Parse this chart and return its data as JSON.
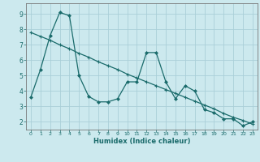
{
  "xlabel": "Humidex (Indice chaleur)",
  "background_color": "#cce9ee",
  "grid_color": "#aacfd8",
  "line_color": "#1a6b6b",
  "xlim": [
    -0.5,
    23.5
  ],
  "ylim": [
    1.5,
    9.7
  ],
  "xticks": [
    0,
    1,
    2,
    3,
    4,
    5,
    6,
    7,
    8,
    9,
    10,
    11,
    12,
    13,
    14,
    15,
    16,
    17,
    18,
    19,
    20,
    21,
    22,
    23
  ],
  "yticks": [
    2,
    3,
    4,
    5,
    6,
    7,
    8,
    9
  ],
  "jagged_x": [
    0,
    1,
    2,
    3,
    4,
    5,
    6,
    7,
    8,
    9,
    10,
    11,
    12,
    13,
    14,
    15,
    16,
    17,
    18,
    19,
    20,
    21,
    22,
    23
  ],
  "jagged_y": [
    3.6,
    5.4,
    7.6,
    9.1,
    8.9,
    5.0,
    3.65,
    3.3,
    3.3,
    3.5,
    4.6,
    4.6,
    6.5,
    6.5,
    4.6,
    3.5,
    4.35,
    4.0,
    2.8,
    2.6,
    2.2,
    2.2,
    1.75,
    2.0
  ],
  "trend_x": [
    0,
    1,
    2,
    3,
    4,
    5,
    6,
    7,
    8,
    9,
    10,
    11,
    12,
    13,
    14,
    15,
    16,
    17,
    18,
    19,
    20,
    21,
    22,
    23
  ],
  "trend_y": [
    7.8,
    7.55,
    7.3,
    7.0,
    6.75,
    6.45,
    6.2,
    5.9,
    5.65,
    5.4,
    5.1,
    4.85,
    4.6,
    4.35,
    4.1,
    3.85,
    3.6,
    3.35,
    3.1,
    2.85,
    2.55,
    2.3,
    2.1,
    1.85
  ]
}
